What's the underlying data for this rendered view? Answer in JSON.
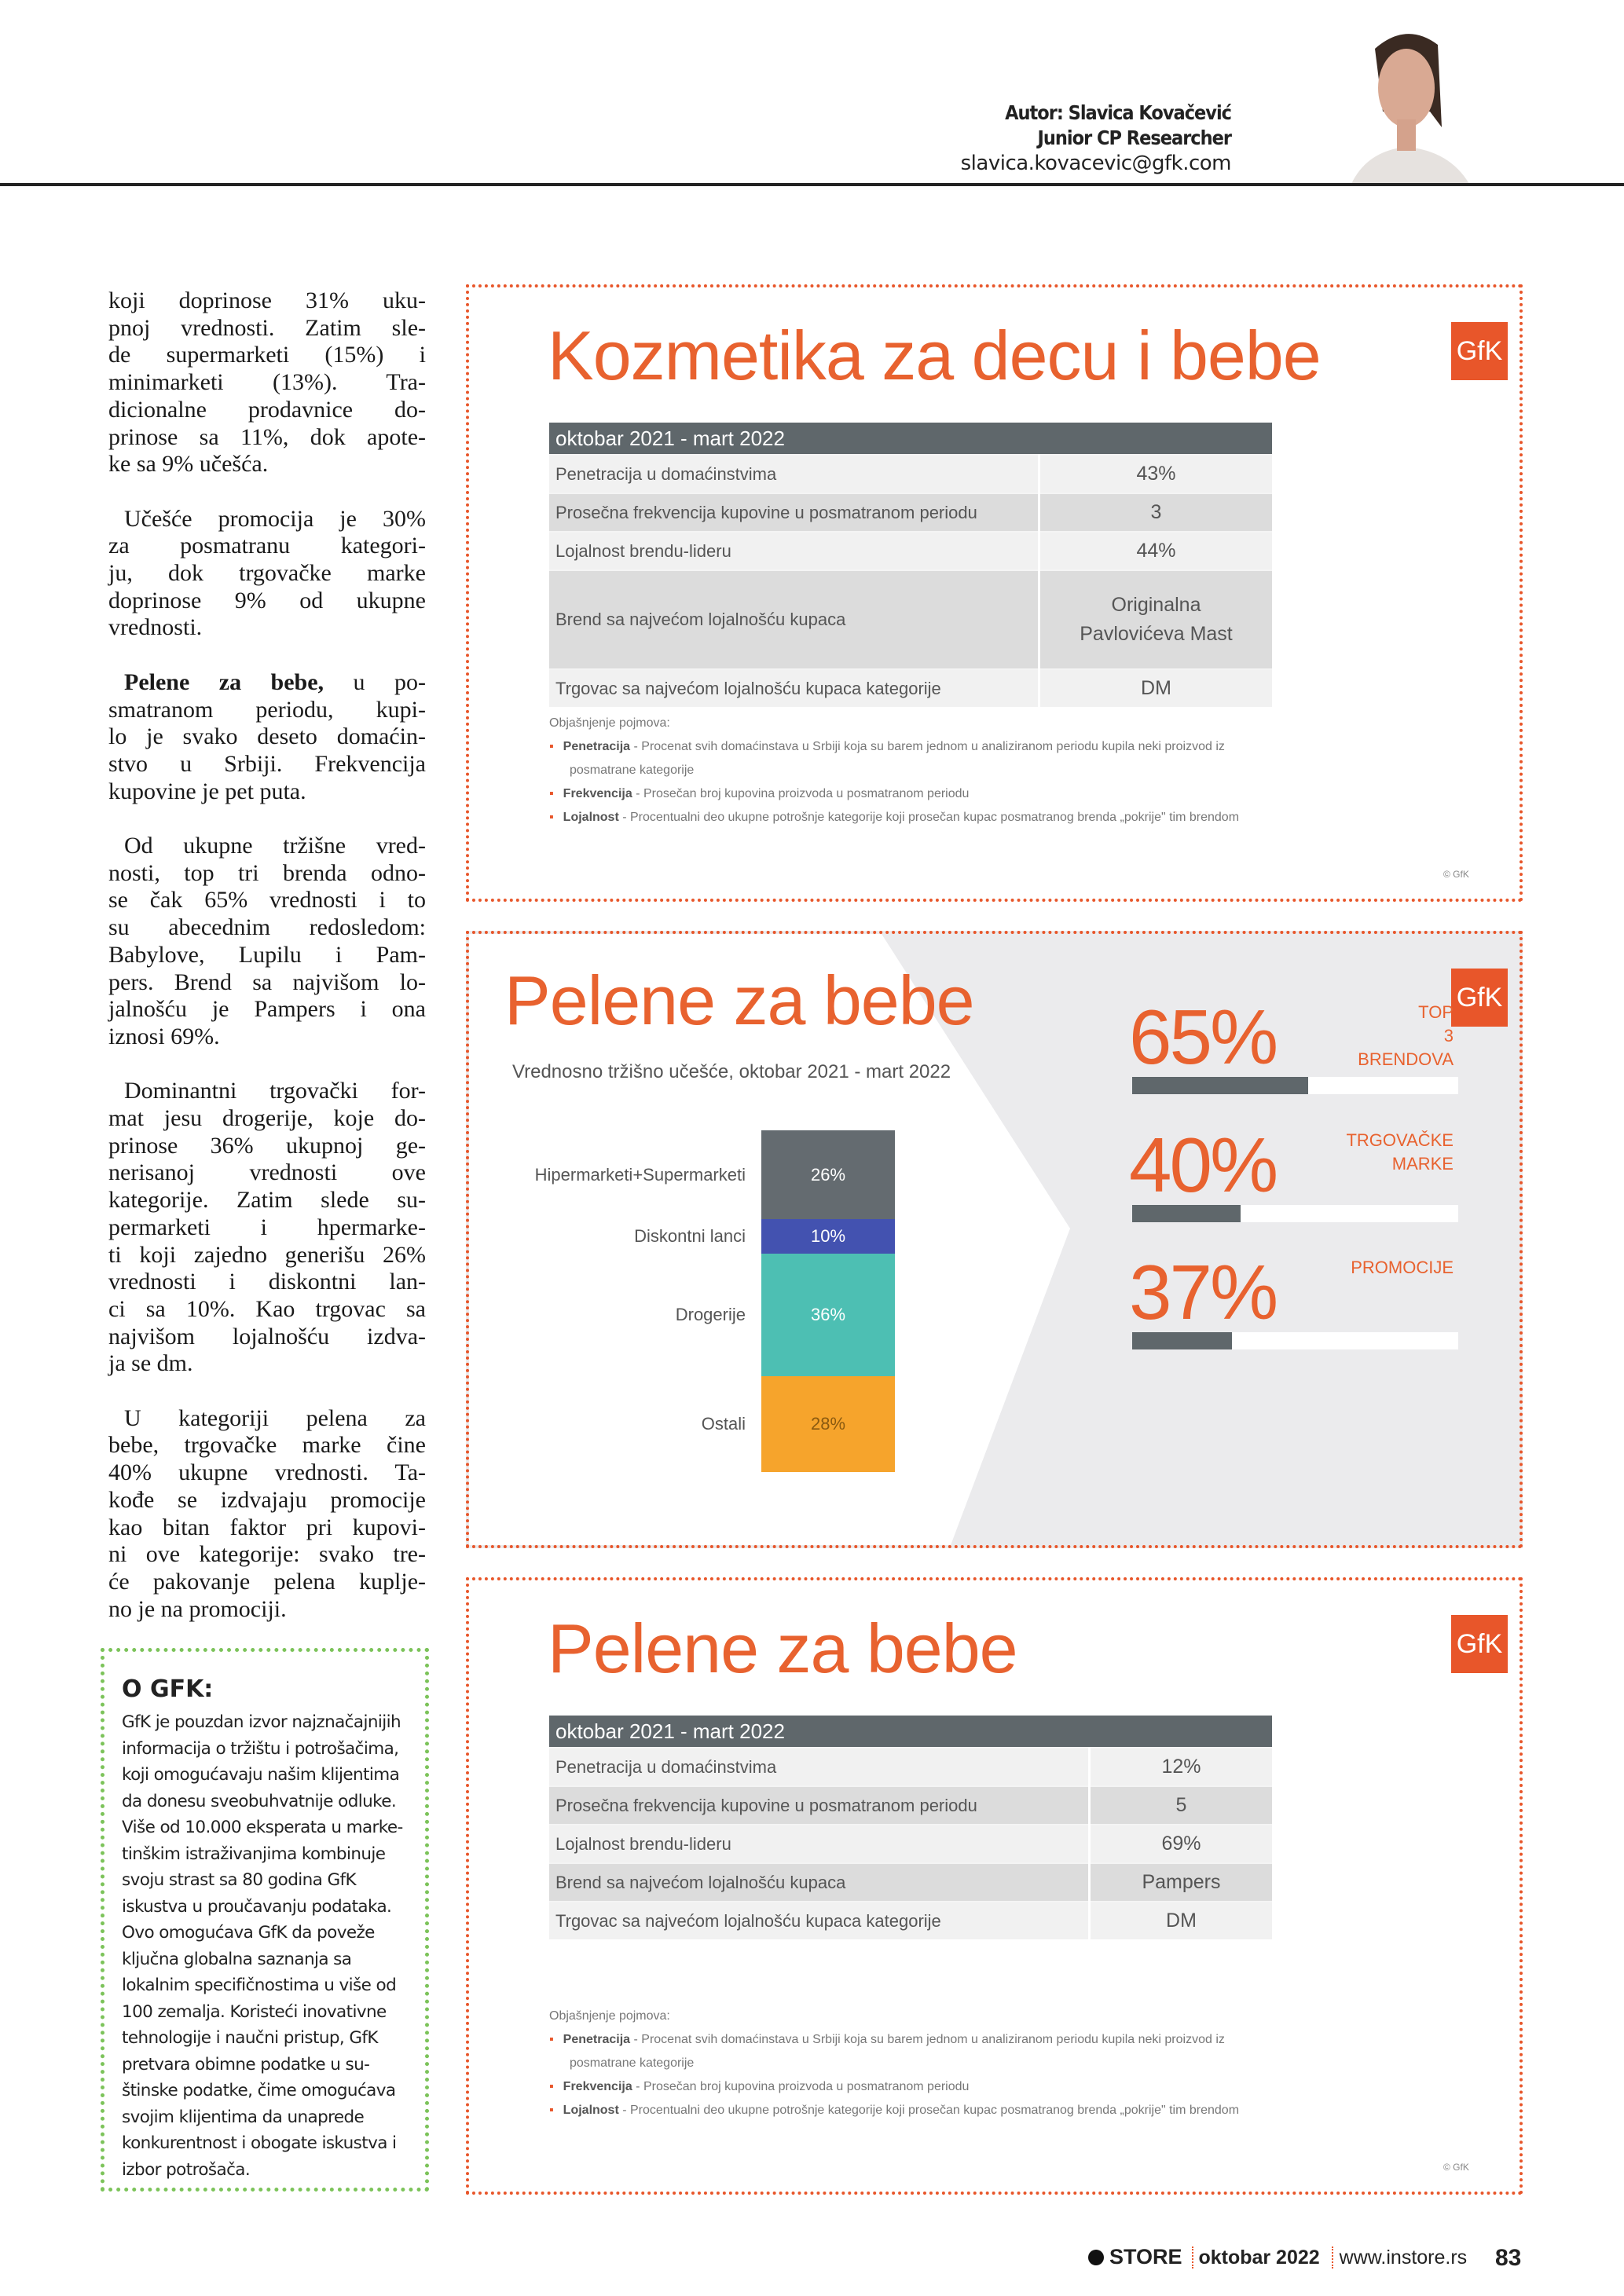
{
  "header": {
    "author": "Autor: Slavica Kovačević",
    "role": "Junior CP Researcher",
    "email": "slavica.kovacevic@gfk.com"
  },
  "article": {
    "paragraphs": [
      {
        "lines": [
          "koji doprinose 31% uku-",
          "pnoj vrednosti. Zatim sle-",
          "de supermarketi (15%) i",
          "minimarketi (13%). Tra-",
          "dicionalne prodavnice do-",
          "prinose sa 11%, dok apote-",
          "ke sa 9% učešća."
        ]
      },
      {
        "lines": [
          "Učešće promocija je 30%",
          "za posmatranu kategori-",
          "ju, dok trgovačke marke",
          "doprinose 9% od ukupne",
          "vrednosti."
        ]
      },
      {
        "bold_lead": "Pelene za bebe,",
        "lines": [
          " u po-",
          "smatranom periodu, kupi-",
          "lo je svako deseto domaćin-",
          "stvo u Srbiji. Frekvencija",
          "kupovine je pet puta."
        ]
      },
      {
        "lines": [
          "Od ukupne tržišne vred-",
          "nosti, top tri brenda odno-",
          "se čak 65% vrednosti i to",
          "su abecednim redosledom:",
          "Babylove, Lupilu i Pam-",
          "pers. Brend sa najvišom lo-",
          "jalnošću je Pampers i ona",
          "iznosi 69%."
        ]
      },
      {
        "lines": [
          "Dominantni trgovački for-",
          "mat jesu drogerije, koje do-",
          "prinose 36% ukupnoj ge-",
          "nerisanoj vrednosti ove",
          "kategorije. Zatim slede su-",
          "permarketi i hpermarke-",
          "ti koji zajedno generišu 26%",
          "vrednosti i diskontni lan-",
          "ci sa 10%. Kao trgovac sa",
          "najvišom lojalnošću izdva-",
          "ja se dm."
        ]
      },
      {
        "lines": [
          "U kategoriji pelena za",
          "bebe, trgovačke marke čine",
          "40% ukupne vrednosti. Ta-",
          "kođe se izdvajaju promocije",
          "kao bitan faktor pri kupovi-",
          "ni ove kategorije: svako tre-",
          "će pakovanje pelena kuplje-",
          "no je na promociji."
        ]
      }
    ]
  },
  "about": {
    "title": "O GFK:",
    "lines": [
      "GfK je pouzdan izvor najznačajnijih",
      "informacija o tržištu i potrošačima,",
      "koji omogućavaju našim klijentima",
      "da donesu sveobuhvatnije odluke.",
      "Više od 10.000 eksperata u marke-",
      "tinškim istraživanjima kombinuje",
      "svoju strast sa 80 godina GfK",
      "iskustva u proučavanju podataka.",
      "Ovo omogućava GfK da poveže",
      "ključna globalna saznanja sa",
      "lokalnim specifičnostima u više od",
      "100 zemalja. Koristeći inovativne",
      "tehnologije i naučni pristup, GfK",
      "pretvara obimne podatke u su-",
      "štinske podatke, čime omogućava",
      "svojim klijentima da unaprede",
      "konkurentnost i obogate iskustva i",
      "izbor potrošača."
    ]
  },
  "logo_text": "GfK",
  "copyright": "© GfK",
  "explanation": {
    "title": "Objašnjenje pojmova:",
    "items": [
      {
        "term": "Penetracija",
        "text": " - Procenat svih domaćinstava u Srbiji koja su barem jednom u analiziranom periodu kupila neki proizvod iz",
        "cont": "posmatrane kategorije"
      },
      {
        "term": "Frekvencija",
        "text": " - Prosečan broj kupovina proizvoda u posmatranom periodu"
      },
      {
        "term": "Lojalnost",
        "text": " - Procentualni deo ukupne potrošnje kategorije koji prosečan kupac posmatranog brenda „pokrije\" tim brendom"
      }
    ]
  },
  "panel1": {
    "title": "Kozmetika za decu i bebe",
    "table_header": "oktobar 2021 - mart 2022",
    "rows": [
      {
        "label": "Penetracija u domaćinstvima",
        "value": "43%"
      },
      {
        "label": "Prosečna frekvencija kupovine u posmatranom periodu",
        "value": "3"
      },
      {
        "label": "Lojalnost brendu-lideru",
        "value": "44%"
      },
      {
        "label": "Brend sa najvećom lojalnošću kupaca",
        "value": "Originalna Pavlovićeva Mast"
      },
      {
        "label": "Trgovac sa najvećom lojalnošću kupaca kategorije",
        "value": "DM"
      }
    ]
  },
  "panel2": {
    "title": "Pelene za bebe",
    "colors": {
      "accent": "#e8622f",
      "bar_dark": "#5f676b",
      "background": "#ebebed"
    }
  },
  "chart_data": [
    {
      "type": "bar",
      "stacked": true,
      "title": "Vrednosno tržišno učešće, oktobar 2021 - mart 2022",
      "categories": [
        "Hipermarketi+Supermarketi",
        "Diskontni lanci",
        "Drogerije",
        "Ostali"
      ],
      "values": [
        26,
        10,
        36,
        28
      ],
      "value_labels": [
        "26%",
        "10%",
        "36%",
        "28%"
      ],
      "colors": [
        "#646b70",
        "#4352b0",
        "#4dbfb3",
        "#f6a42c"
      ],
      "unit": "%"
    },
    {
      "type": "bar",
      "orientation": "horizontal",
      "categories": [
        "TOP 3 BRENDOVA",
        "TRGOVAČKE MARKE",
        "PROMOCIJE"
      ],
      "values": [
        65,
        40,
        37
      ],
      "value_labels": [
        "65%",
        "40%",
        "37%"
      ],
      "xlim": [
        0,
        100
      ]
    }
  ],
  "panel3": {
    "title": "Pelene za bebe",
    "table_header": "oktobar 2021 - mart 2022",
    "rows": [
      {
        "label": "Penetracija u domaćinstvima",
        "value": "12%"
      },
      {
        "label": "Prosečna frekvencija kupovine u posmatranom periodu",
        "value": "5"
      },
      {
        "label": "Lojalnost brendu-lideru",
        "value": "69%"
      },
      {
        "label": "Brend sa najvećom lojalnošću kupaca",
        "value": "Pampers"
      },
      {
        "label": "Trgovac sa najvećom lojalnošću kupaca kategorije",
        "value": "DM"
      }
    ]
  },
  "footer": {
    "brand": "STORE",
    "issue": "oktobar 2022",
    "website": "www.instore.rs",
    "page": "83"
  }
}
